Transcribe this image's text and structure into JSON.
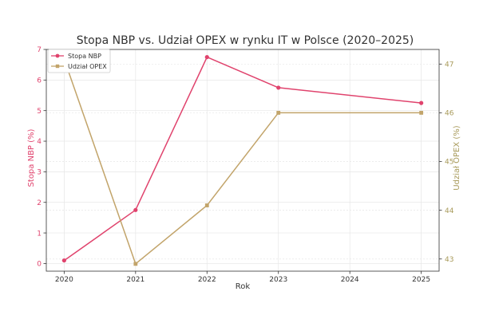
{
  "chart_data": {
    "type": "line",
    "title": "Stopa NBP vs. Udział OPEX w rynku IT w Polsce (2020–2025)",
    "xlabel": "Rok",
    "ylabel_left": "Stopa NBP (%)",
    "ylabel_right": "Udział OPEX (%)",
    "x": [
      2020,
      2021,
      2022,
      2023,
      2025
    ],
    "xticks": [
      "2020",
      "2021",
      "2022",
      "2023",
      "2024",
      "2025"
    ],
    "xlim": [
      2019.75,
      2025.25
    ],
    "ylim_left": [
      -0.25,
      7
    ],
    "ylim_right": [
      42.75,
      47.3
    ],
    "yticks_left": [
      "0",
      "1",
      "2",
      "3",
      "4",
      "5",
      "6",
      "7"
    ],
    "yticks_right": [
      "43",
      "44",
      "45",
      "46",
      "47"
    ],
    "grid": true,
    "legend_position": "top-left",
    "series": [
      {
        "name": "Stopa NBP",
        "axis": "left",
        "color": "#e0436d",
        "marker": "circle",
        "values": [
          0.1,
          1.75,
          6.75,
          5.75,
          5.25
        ]
      },
      {
        "name": "Udział OPEX",
        "axis": "right",
        "color": "#c2a46a",
        "marker": "square",
        "values": [
          47.1,
          42.9,
          44.1,
          46.0,
          46.0
        ]
      }
    ],
    "colors": {
      "left_axis": "#e0436d",
      "right_axis": "#a89a5a",
      "grid": "#e6e6e6",
      "text": "#333333"
    }
  }
}
